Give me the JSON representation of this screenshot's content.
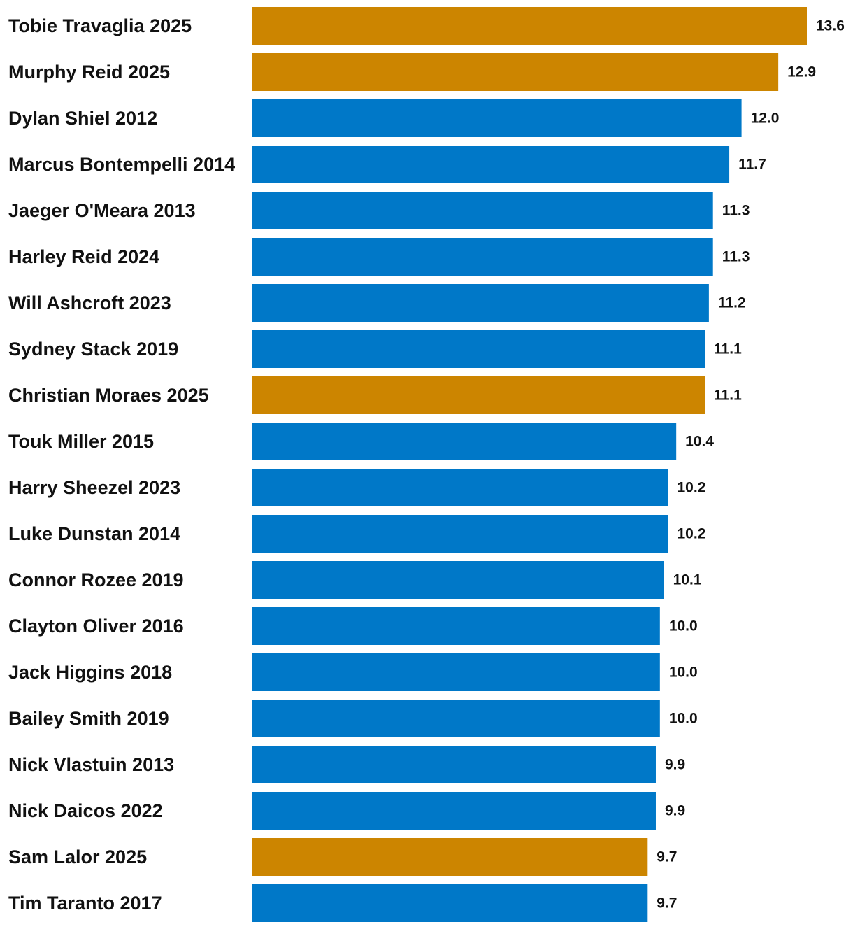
{
  "chart_data": {
    "type": "bar",
    "orientation": "horizontal",
    "categories": [
      "Tobie Travaglia 2025",
      "Murphy Reid 2025",
      "Dylan Shiel 2012",
      "Marcus Bontempelli 2014",
      "Jaeger O'Meara 2013",
      "Harley Reid 2024",
      "Will Ashcroft 2023",
      "Sydney Stack 2019",
      "Christian Moraes 2025",
      "Touk Miller 2015",
      "Harry Sheezel 2023",
      "Luke Dunstan 2014",
      "Connor Rozee 2019",
      "Clayton Oliver 2016",
      "Jack Higgins 2018",
      "Bailey Smith 2019",
      "Nick Vlastuin 2013",
      "Nick Daicos 2022",
      "Sam Lalor 2025",
      "Tim Taranto 2017"
    ],
    "values": [
      13.6,
      12.9,
      12.0,
      11.7,
      11.3,
      11.3,
      11.2,
      11.1,
      11.1,
      10.4,
      10.2,
      10.2,
      10.1,
      10.0,
      10.0,
      10.0,
      9.9,
      9.9,
      9.7,
      9.7
    ],
    "value_labels": [
      "13.6",
      "12.9",
      "12.0",
      "11.7",
      "11.3",
      "11.3",
      "11.2",
      "11.1",
      "11.1",
      "10.4",
      "10.2",
      "10.2",
      "10.1",
      "10.0",
      "10.0",
      "10.0",
      "9.9",
      "9.9",
      "9.7",
      "9.7"
    ],
    "highlighted": [
      true,
      true,
      false,
      false,
      false,
      false,
      false,
      false,
      true,
      false,
      false,
      false,
      false,
      false,
      false,
      false,
      false,
      false,
      true,
      false
    ],
    "colors": {
      "highlight": "#cc8500",
      "default": "#0078c8"
    },
    "xlim": [
      0,
      13.6
    ],
    "grid": false,
    "legend": "none",
    "title": "",
    "xlabel": "",
    "ylabel": ""
  }
}
